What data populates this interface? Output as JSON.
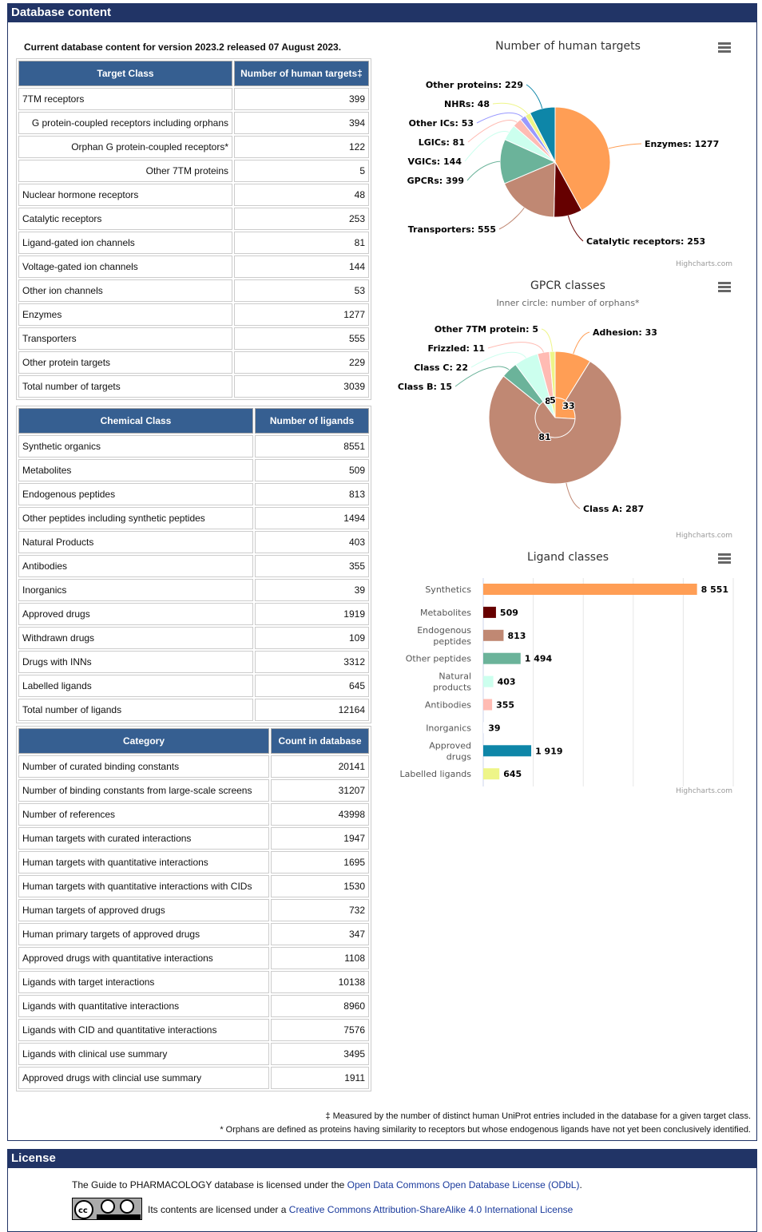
{
  "section_title": "Database content",
  "intro": "Current database content for version 2023.2 released 07 August 2023.",
  "targets_table": {
    "headers": [
      "Target Class",
      "Number of human targets‡"
    ],
    "rows": [
      [
        "7TM receptors",
        "399",
        false
      ],
      [
        "G protein-coupled receptors including orphans",
        "394",
        true
      ],
      [
        "Orphan G protein-coupled receptors*",
        "122",
        true
      ],
      [
        "Other 7TM proteins",
        "5",
        true
      ],
      [
        "Nuclear hormone receptors",
        "48",
        false
      ],
      [
        "Catalytic receptors",
        "253",
        false
      ],
      [
        "Ligand-gated ion channels",
        "81",
        false
      ],
      [
        "Voltage-gated ion channels",
        "144",
        false
      ],
      [
        "Other ion channels",
        "53",
        false
      ],
      [
        "Enzymes",
        "1277",
        false
      ],
      [
        "Transporters",
        "555",
        false
      ],
      [
        "Other protein targets",
        "229",
        false
      ],
      [
        "Total number of targets",
        "3039",
        false
      ]
    ]
  },
  "ligands_table": {
    "headers": [
      "Chemical Class",
      "Number of ligands"
    ],
    "rows": [
      [
        "Synthetic organics",
        "8551"
      ],
      [
        "Metabolites",
        "509"
      ],
      [
        "Endogenous peptides",
        "813"
      ],
      [
        "Other peptides including synthetic peptides",
        "1494"
      ],
      [
        "Natural Products",
        "403"
      ],
      [
        "Antibodies",
        "355"
      ],
      [
        "Inorganics",
        "39"
      ],
      [
        "Approved drugs",
        "1919"
      ],
      [
        "Withdrawn drugs",
        "109"
      ],
      [
        "Drugs with INNs",
        "3312"
      ],
      [
        "Labelled ligands",
        "645"
      ],
      [
        "Total number of ligands",
        "12164"
      ]
    ]
  },
  "category_table": {
    "headers": [
      "Category",
      "Count in database"
    ],
    "rows": [
      [
        "Number of curated binding constants",
        "20141"
      ],
      [
        "Number of binding constants from large-scale screens",
        "31207"
      ],
      [
        "Number of references",
        "43998"
      ],
      [
        "Human targets with curated interactions",
        "1947"
      ],
      [
        "Human targets with quantitative interactions",
        "1695"
      ],
      [
        "Human targets with quantitative interactions with CIDs",
        "1530"
      ],
      [
        "Human targets of approved drugs",
        "732"
      ],
      [
        "Human primary targets of approved drugs",
        "347"
      ],
      [
        "Approved drugs with quantitative interactions",
        "1108"
      ],
      [
        "Ligands with target interactions",
        "10138"
      ],
      [
        "Ligands with quantitative interactions",
        "8960"
      ],
      [
        "Ligands with CID and quantitative interactions",
        "7576"
      ],
      [
        "Ligands with clinical use summary",
        "3495"
      ],
      [
        "Approved drugs with clincial use summary",
        "1911"
      ]
    ]
  },
  "footnotes": {
    "dagger": "‡ Measured by the number of distinct human UniProt entries included in the database for a given target class.",
    "star": "* Orphans are defined as proteins having similarity to receptors but whose endogenous ligands have not yet been conclusively identified."
  },
  "license": {
    "title": "License",
    "line1_prefix": "The Guide to PHARMACOLOGY database is licensed under the ",
    "line1_link": "Open Data Commons Open Database License (ODbL)",
    "line1_suffix": ".",
    "line2_prefix": "Its contents are licensed under a ",
    "line2_link": "Creative Commons Attribution-ShareAlike 4.0 International License",
    "badge": "cc by sa"
  },
  "credits": "Highcharts.com",
  "menu_icon": "hamburger-menu-icon",
  "chart_data": [
    {
      "type": "pie",
      "title": "Number of human targets",
      "categories": [
        "Enzymes",
        "Catalytic receptors",
        "Transporters",
        "GPCRs",
        "VGICs",
        "LGICs",
        "Other ICs",
        "NHRs",
        "Other proteins"
      ],
      "values": [
        1277,
        253,
        555,
        399,
        144,
        81,
        53,
        48,
        229
      ],
      "colors": [
        "#ff9e55",
        "#660000",
        "#c08873",
        "#6bb39a",
        "#ccffee",
        "#ffbbb3",
        "#9999ff",
        "#eef588",
        "#0e86a8"
      ]
    },
    {
      "type": "pie",
      "title": "GPCR classes",
      "subtitle": "Inner circle: number of orphans*",
      "categories": [
        "Adhesion",
        "Class A",
        "Class B",
        "Class C",
        "Frizzled",
        "Other 7TM protein"
      ],
      "values": [
        33,
        287,
        15,
        22,
        11,
        5
      ],
      "inner_values": [
        33,
        81,
        0,
        8,
        0,
        5
      ],
      "colors": [
        "#ff9e55",
        "#c08873",
        "#6bb39a",
        "#ccffee",
        "#ffbbb3",
        "#eef588"
      ]
    },
    {
      "type": "bar",
      "title": "Ligand classes",
      "categories": [
        "Synthetics",
        "Metabolites",
        "Endogenous peptides",
        "Other peptides",
        "Natural products",
        "Antibodies",
        "Inorganics",
        "Approved drugs",
        "Labelled ligands"
      ],
      "values": [
        8551,
        509,
        813,
        1494,
        403,
        355,
        39,
        1919,
        645
      ],
      "value_labels": [
        "8 551",
        "509",
        "813",
        "1 494",
        "403",
        "355",
        "39",
        "1 919",
        "645"
      ],
      "colors": [
        "#ff9e55",
        "#660000",
        "#c08873",
        "#6bb39a",
        "#ccffee",
        "#ffbbb3",
        "#ffffff",
        "#0e86a8",
        "#eef588"
      ],
      "xlim": [
        0,
        10000
      ],
      "grid": true
    }
  ]
}
